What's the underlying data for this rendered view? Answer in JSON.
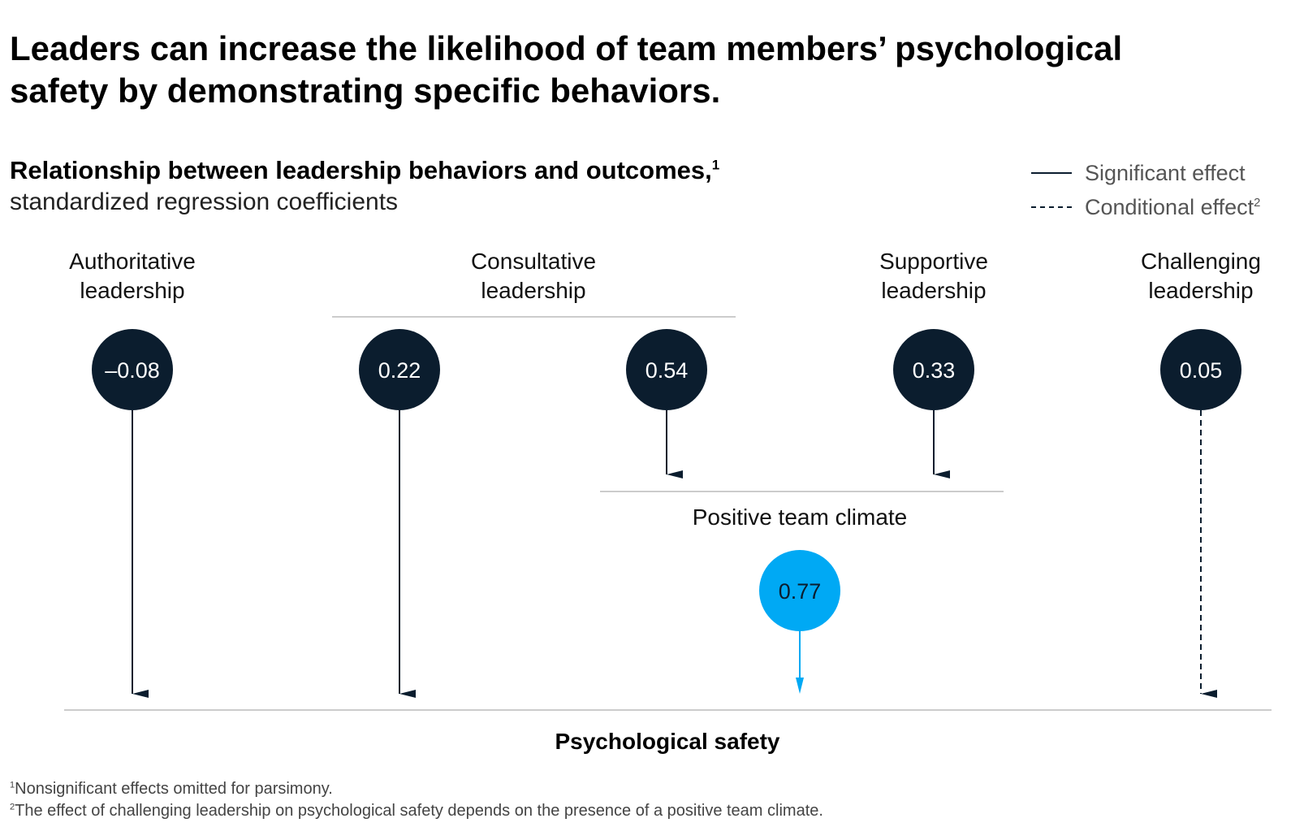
{
  "title": "Leaders can increase the likelihood of team members’ psychological safety by demonstrating specific behaviors.",
  "subtitle": {
    "main": "Relationship between leadership behaviors and outcomes,",
    "main_sup": "1",
    "sub": "standardized regression coefficients"
  },
  "legend": {
    "significant": "Significant effect",
    "conditional": "Conditional effect",
    "conditional_sup": "2"
  },
  "groups": [
    {
      "id": "authoritative",
      "line1": "Authoritative",
      "line2": "leadership"
    },
    {
      "id": "consultative",
      "line1": "Consultative",
      "line2": "leadership"
    },
    {
      "id": "supportive",
      "line1": "Supportive",
      "line2": "leadership"
    },
    {
      "id": "challenging",
      "line1": "Challenging",
      "line2": "leadership"
    }
  ],
  "nodes": [
    {
      "id": "authoritative-safety",
      "value": "–0.08",
      "target": "Psychological safety",
      "effect": "significant"
    },
    {
      "id": "consultative-safety",
      "value": "0.22",
      "target": "Psychological safety",
      "effect": "significant"
    },
    {
      "id": "consultative-climate",
      "value": "0.54",
      "target": "Positive team climate",
      "effect": "significant"
    },
    {
      "id": "supportive-climate",
      "value": "0.33",
      "target": "Positive team climate",
      "effect": "significant"
    },
    {
      "id": "challenging-safety",
      "value": "0.05",
      "target": "Psychological safety",
      "effect": "conditional"
    }
  ],
  "climate": {
    "label": "Positive team climate",
    "value": "0.77",
    "target": "Psychological safety",
    "effect": "significant"
  },
  "outcome": {
    "label": "Psychological safety"
  },
  "colors": {
    "node": "#0b1d2e",
    "accent": "#00a9f4",
    "divider": "#bbbbbb"
  },
  "footnotes": {
    "f1_sup": "1",
    "f1": "Nonsignificant effects omitted for parsimony.",
    "f2_sup": "2",
    "f2": "The effect of challenging leadership on psychological safety depends on the presence of a positive team climate."
  }
}
